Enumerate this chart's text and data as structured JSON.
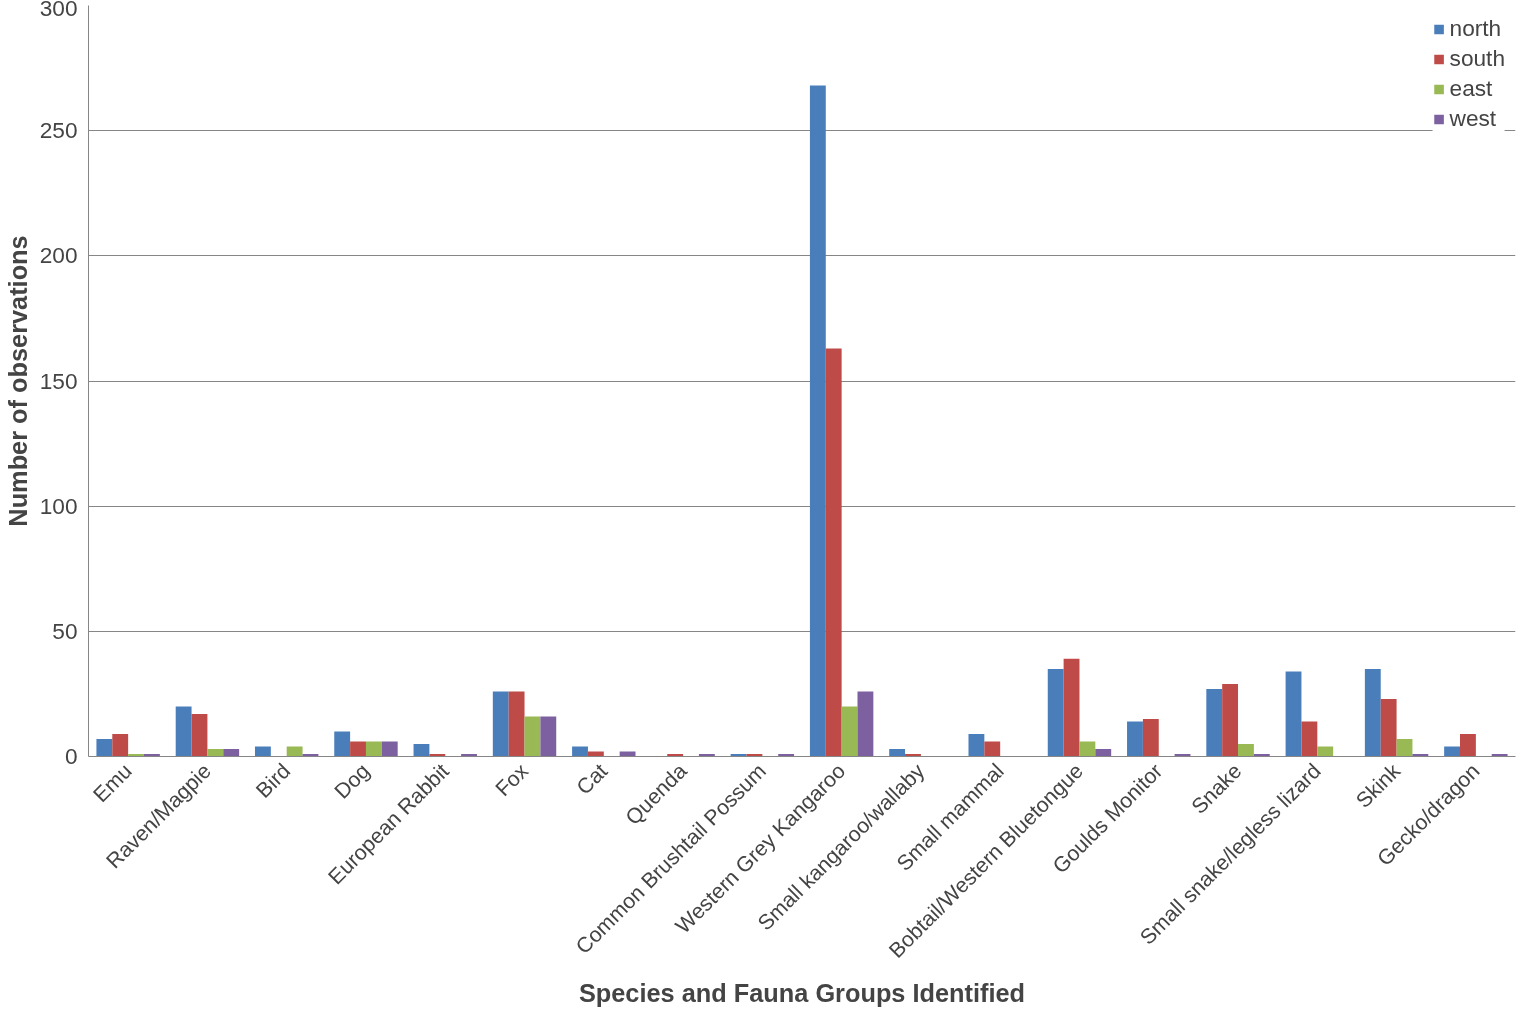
{
  "chart_data": {
    "type": "bar",
    "xlabel": "Species and Fauna Groups Identified",
    "ylabel": "Number of observations",
    "categories": [
      "Emu",
      "Raven/Magpie",
      "Bird",
      "Dog",
      "European Rabbit",
      "Fox",
      "Cat",
      "Quenda",
      "Common Brushtail Possum",
      "Western Grey Kangaroo",
      "Small kangaroo/wallaby",
      "Small mammal",
      "Bobtail/Western Bluetongue",
      "Goulds Monitor",
      "Snake",
      "Small snake/legless lizard",
      "Skink",
      "Gecko/dragon"
    ],
    "series": [
      {
        "name": "north",
        "color": "#4a7ebb",
        "values": [
          7,
          20,
          4,
          10,
          5,
          26,
          4,
          0,
          1,
          268,
          3,
          9,
          35,
          14,
          27,
          34,
          35,
          4
        ]
      },
      {
        "name": "south",
        "color": "#be4b48",
        "values": [
          9,
          17,
          0,
          6,
          1,
          26,
          2,
          1,
          1,
          163,
          1,
          6,
          39,
          15,
          29,
          14,
          23,
          9
        ]
      },
      {
        "name": "east",
        "color": "#98b954",
        "values": [
          1,
          3,
          4,
          6,
          0,
          16,
          0,
          0,
          0,
          20,
          0,
          0,
          6,
          0,
          5,
          4,
          7,
          0
        ]
      },
      {
        "name": "west",
        "color": "#7d60a0",
        "values": [
          1,
          3,
          1,
          6,
          1,
          16,
          2,
          1,
          1,
          26,
          0,
          0,
          3,
          1,
          1,
          0,
          1,
          1
        ]
      }
    ],
    "ylim": [
      0,
      300
    ],
    "yticks": [
      0,
      50,
      100,
      150,
      200,
      250,
      300
    ],
    "grid": "y",
    "legend": "top right"
  }
}
